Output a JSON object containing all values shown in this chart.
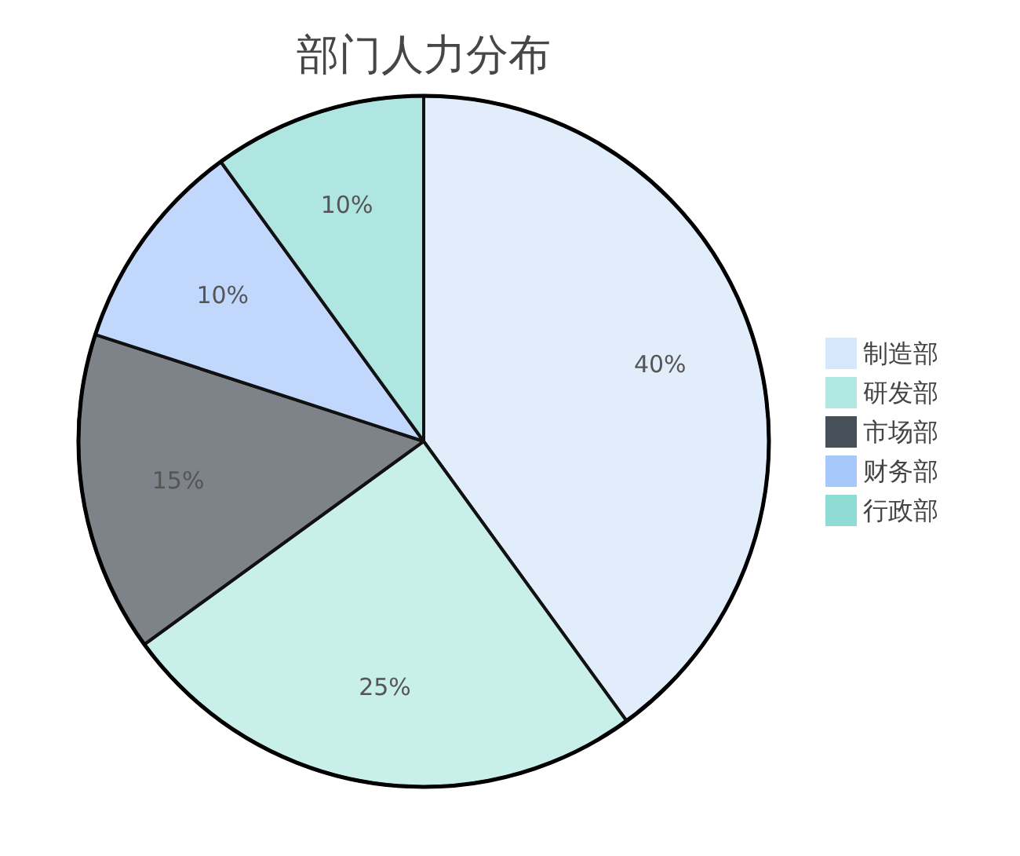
{
  "chart_data": {
    "type": "pie",
    "title": "部门人力分布",
    "categories": [
      "制造部",
      "研发部",
      "市场部",
      "财务部",
      "行政部"
    ],
    "values": [
      40,
      25,
      15,
      10,
      10
    ],
    "colors": [
      "#d6e6fb",
      "#b2e8e2",
      "#474f58",
      "#a6c8fb",
      "#8fdcd4"
    ],
    "value_labels": [
      "40%",
      "25%",
      "15%",
      "10%",
      "10%"
    ],
    "legend": "right"
  }
}
